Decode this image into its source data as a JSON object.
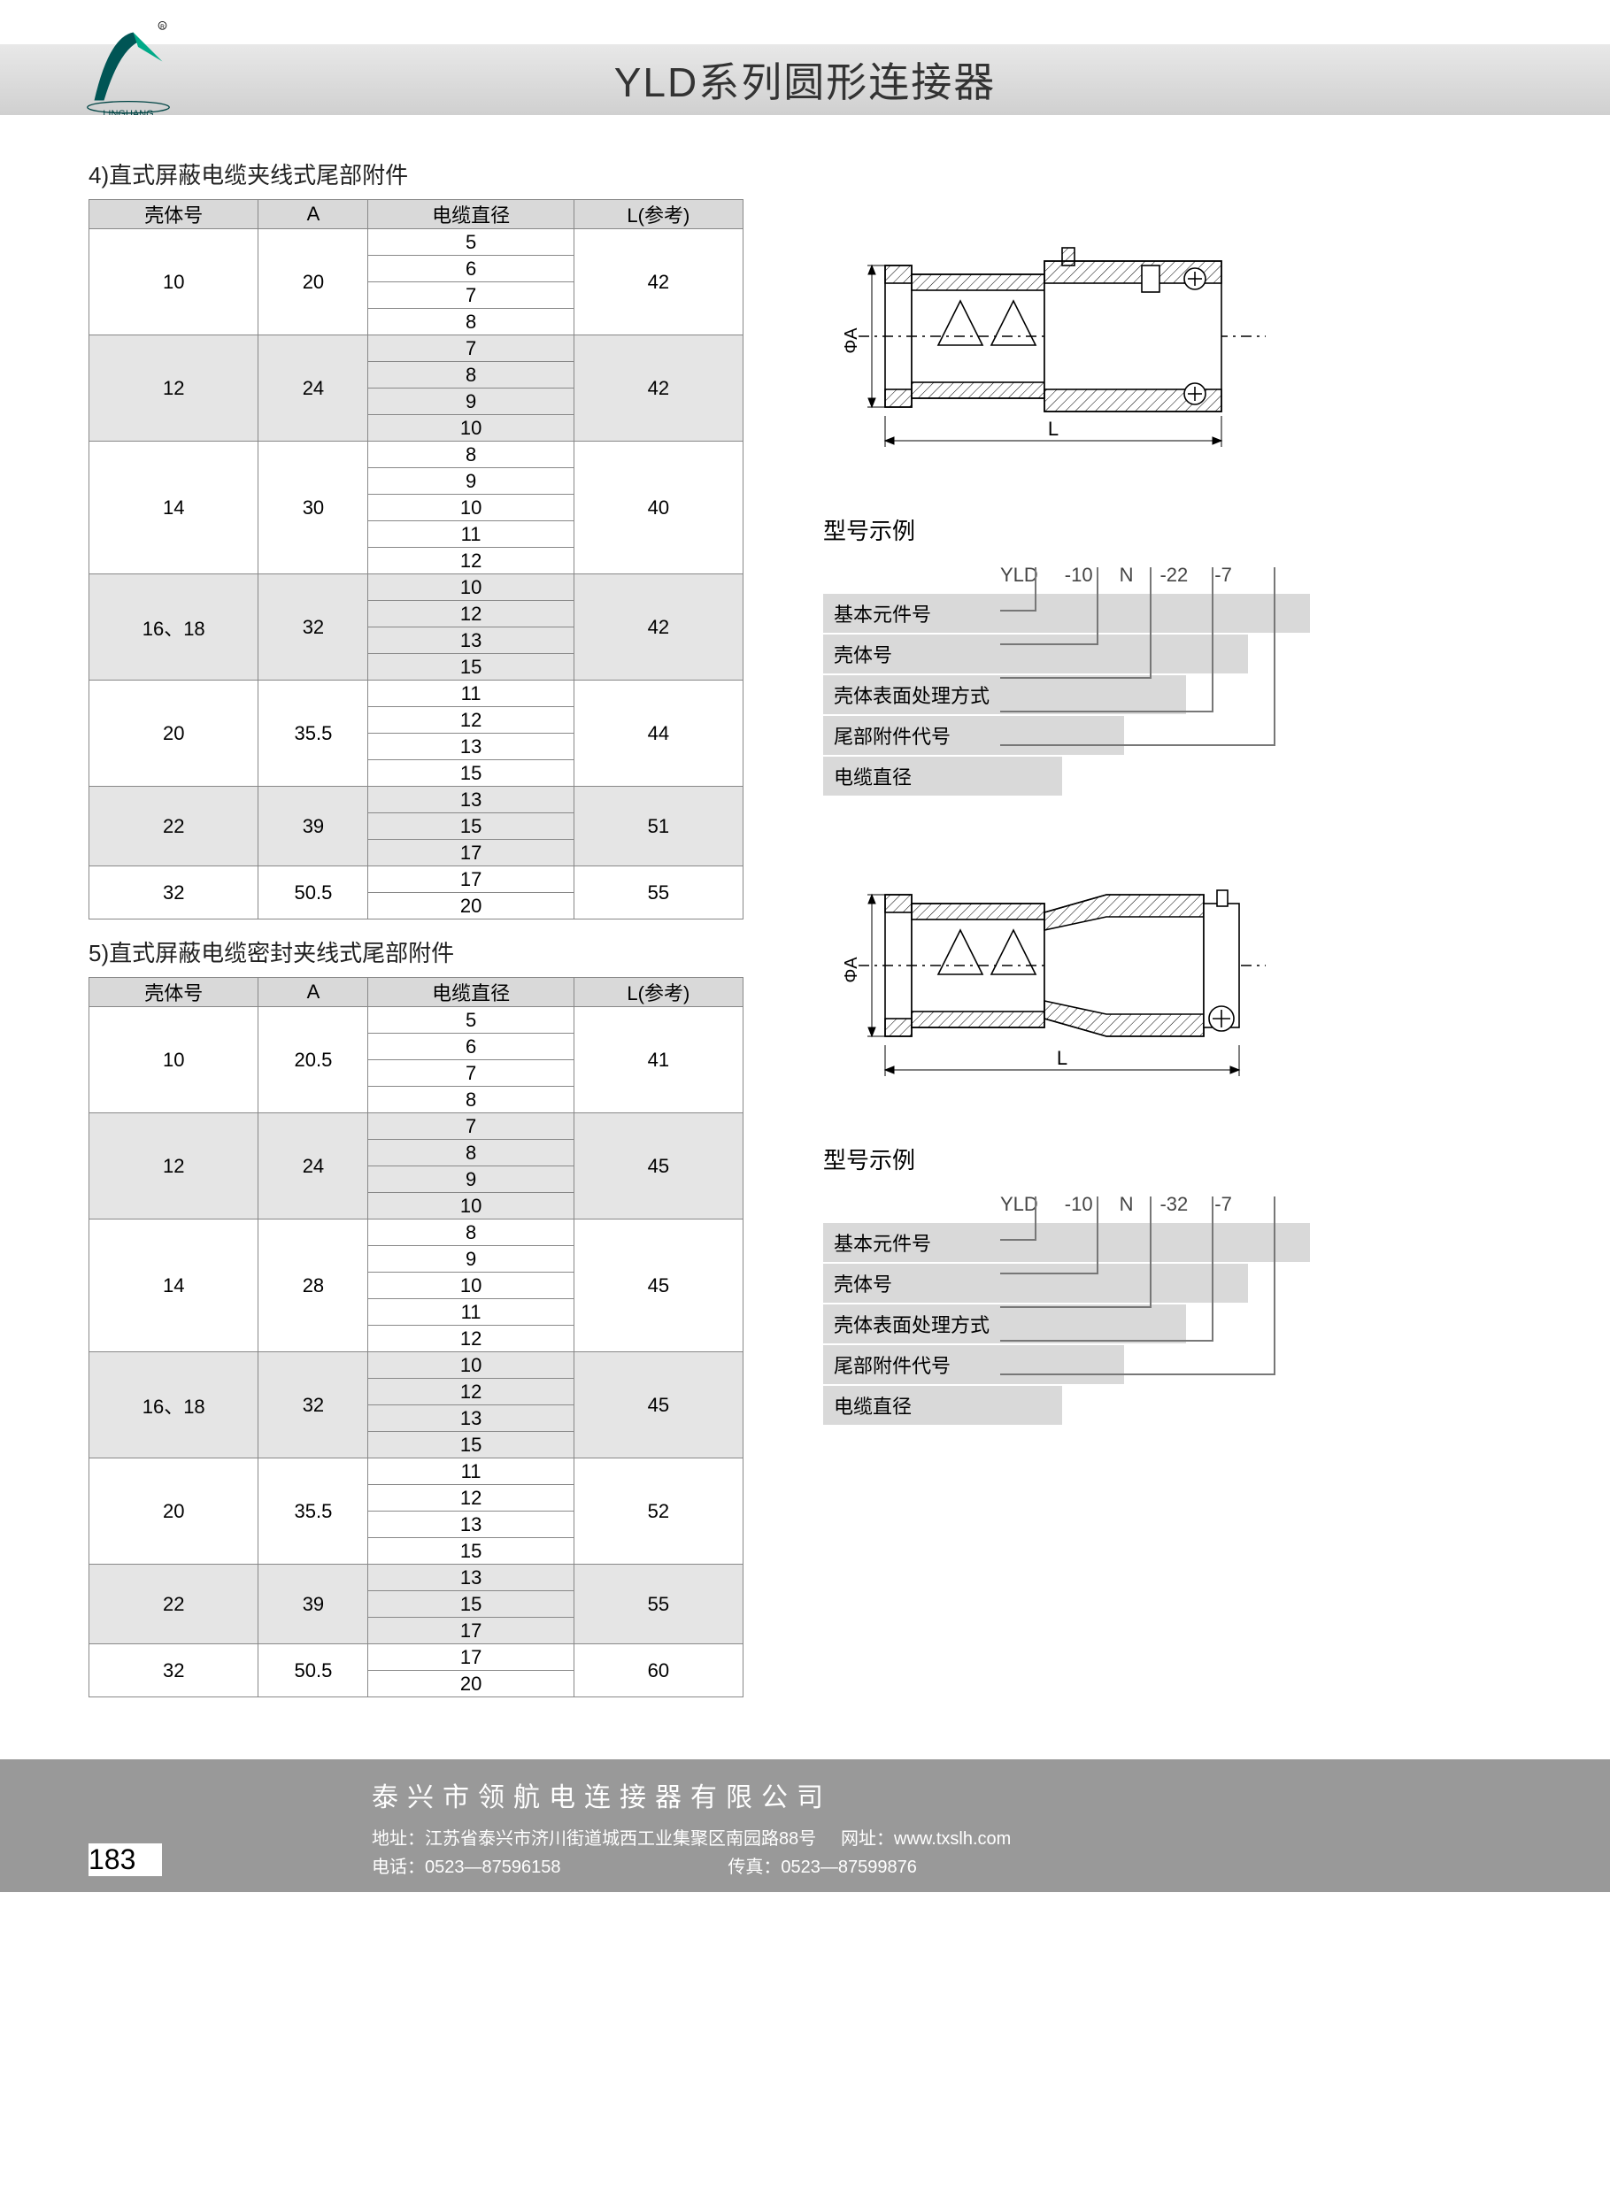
{
  "header": {
    "title": "YLD系列圆形连接器",
    "logo_text": "LINGHANG"
  },
  "section4": {
    "title": "4)直式屏蔽电缆夹线式尾部附件",
    "columns": [
      "壳体号",
      "A",
      "电缆直径",
      "L(参考)"
    ],
    "groups": [
      {
        "shell": "10",
        "a": "20",
        "diams": [
          "5",
          "6",
          "7",
          "8"
        ],
        "l": "42",
        "shade": false
      },
      {
        "shell": "12",
        "a": "24",
        "diams": [
          "7",
          "8",
          "9",
          "10"
        ],
        "l": "42",
        "shade": true
      },
      {
        "shell": "14",
        "a": "30",
        "diams": [
          "8",
          "9",
          "10",
          "11",
          "12"
        ],
        "l": "40",
        "shade": false
      },
      {
        "shell": "16、18",
        "a": "32",
        "diams": [
          "10",
          "12",
          "13",
          "15"
        ],
        "l": "42",
        "shade": true
      },
      {
        "shell": "20",
        "a": "35.5",
        "diams": [
          "11",
          "12",
          "13",
          "15"
        ],
        "l": "44",
        "shade": false
      },
      {
        "shell": "22",
        "a": "39",
        "diams": [
          "13",
          "15",
          "17"
        ],
        "l": "51",
        "shade": true
      },
      {
        "shell": "32",
        "a": "50.5",
        "diams": [
          "17",
          "20"
        ],
        "l": "55",
        "shade": false
      }
    ]
  },
  "section5": {
    "title": "5)直式屏蔽电缆密封夹线式尾部附件",
    "columns": [
      "壳体号",
      "A",
      "电缆直径",
      "L(参考)"
    ],
    "groups": [
      {
        "shell": "10",
        "a": "20.5",
        "diams": [
          "5",
          "6",
          "7",
          "8"
        ],
        "l": "41",
        "shade": false
      },
      {
        "shell": "12",
        "a": "24",
        "diams": [
          "7",
          "8",
          "9",
          "10"
        ],
        "l": "45",
        "shade": true
      },
      {
        "shell": "14",
        "a": "28",
        "diams": [
          "8",
          "9",
          "10",
          "11",
          "12"
        ],
        "l": "45",
        "shade": false
      },
      {
        "shell": "16、18",
        "a": "32",
        "diams": [
          "10",
          "12",
          "13",
          "15"
        ],
        "l": "45",
        "shade": true
      },
      {
        "shell": "20",
        "a": "35.5",
        "diams": [
          "11",
          "12",
          "13",
          "15"
        ],
        "l": "52",
        "shade": false
      },
      {
        "shell": "22",
        "a": "39",
        "diams": [
          "13",
          "15",
          "17"
        ],
        "l": "55",
        "shade": true
      },
      {
        "shell": "32",
        "a": "50.5",
        "diams": [
          "17",
          "20"
        ],
        "l": "60",
        "shade": false
      }
    ]
  },
  "model1": {
    "heading": "型号示例",
    "code": [
      "YLD",
      "-10",
      "N",
      "-22",
      "-7"
    ],
    "labels": [
      "基本元件号",
      "壳体号",
      "壳体表面处理方式",
      "尾部附件代号",
      "电缆直径"
    ]
  },
  "model2": {
    "heading": "型号示例",
    "code": [
      "YLD",
      "-10",
      "N",
      "-32",
      "-7"
    ],
    "labels": [
      "基本元件号",
      "壳体号",
      "壳体表面处理方式",
      "尾部附件代号",
      "电缆直径"
    ]
  },
  "drawing": {
    "dim_a": "ΦA",
    "dim_l": "L"
  },
  "footer": {
    "page": "183",
    "company": "泰兴市领航电连接器有限公司",
    "address": "地址：江苏省泰兴市济川街道城西工业集聚区南园路88号",
    "website": "网址：www.txslh.com",
    "phone": "电话：0523—87596158",
    "fax": "传真：0523—87599876"
  },
  "colors": {
    "header_bg": "#d8d8d8",
    "table_header_bg": "#d9d9d9",
    "shade_bg": "#e5e5e5",
    "border": "#888888",
    "footer_bg": "#999999"
  }
}
